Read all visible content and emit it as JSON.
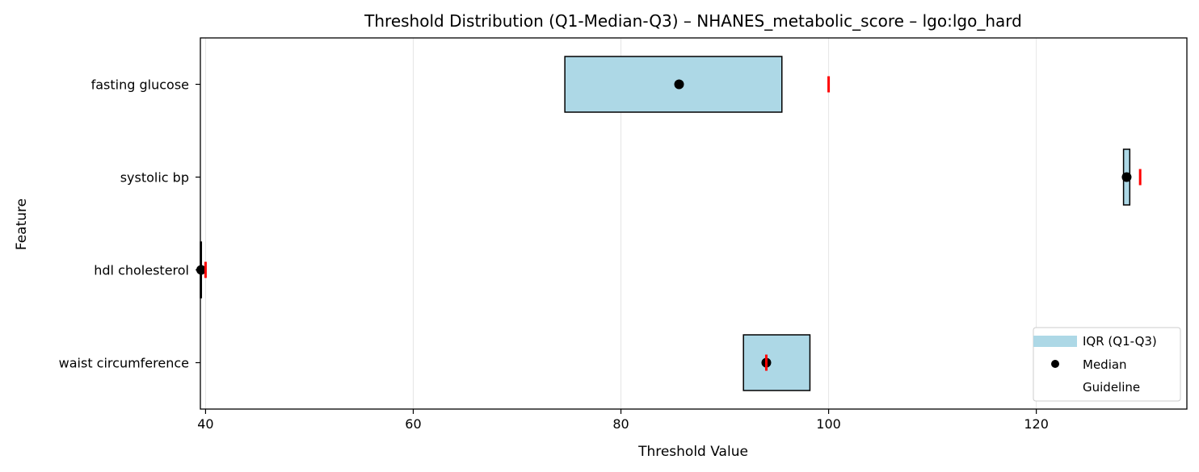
{
  "chart_data": {
    "type": "box",
    "title": "Threshold Distribution (Q1-Median-Q3) – NHANES_metabolic_score – lgo:lgo_hard",
    "xlabel": "Threshold Value",
    "ylabel": "Feature",
    "xlim": [
      39.5,
      134.5
    ],
    "xticks": [
      40,
      60,
      80,
      100,
      120
    ],
    "grid": "x",
    "legend_position": "lower-right",
    "legend": {
      "iqr_label": "IQR (Q1-Q3)",
      "median_label": "Median",
      "guideline_label": "Guideline"
    },
    "colors": {
      "iqr_fill": "#add8e6",
      "median": "#000000",
      "guideline": "#ff0000"
    },
    "features": [
      {
        "name": "fasting glucose",
        "q1": 74.6,
        "median": 85.6,
        "q3": 95.5,
        "guideline": 100
      },
      {
        "name": "systolic bp",
        "q1": 128.4,
        "median": 128.7,
        "q3": 129.0,
        "guideline": 130
      },
      {
        "name": "hdl cholesterol",
        "q1": 39.4,
        "median": 39.5,
        "q3": 39.6,
        "guideline": 40
      },
      {
        "name": "waist circumference",
        "q1": 91.8,
        "median": 94.0,
        "q3": 98.2,
        "guideline": 94
      }
    ]
  }
}
